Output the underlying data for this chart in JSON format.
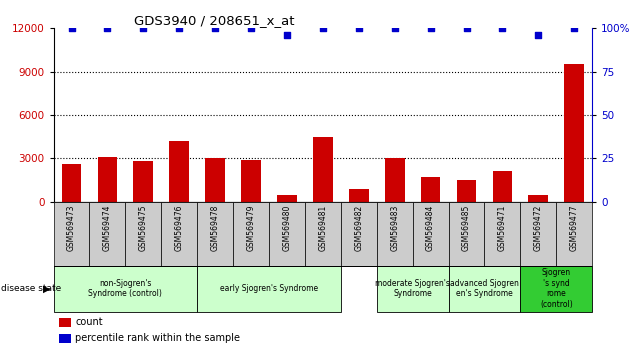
{
  "title": "GDS3940 / 208651_x_at",
  "samples": [
    "GSM569473",
    "GSM569474",
    "GSM569475",
    "GSM569476",
    "GSM569478",
    "GSM569479",
    "GSM569480",
    "GSM569481",
    "GSM569482",
    "GSM569483",
    "GSM569484",
    "GSM569485",
    "GSM569471",
    "GSM569472",
    "GSM569477"
  ],
  "counts": [
    2600,
    3100,
    2800,
    4200,
    3000,
    2900,
    500,
    4500,
    900,
    3000,
    1700,
    1500,
    2100,
    500,
    9500
  ],
  "percentiles": [
    100,
    100,
    100,
    100,
    100,
    100,
    96,
    100,
    100,
    100,
    100,
    100,
    100,
    96,
    100
  ],
  "bar_color": "#cc0000",
  "dot_color": "#0000cc",
  "group_defs": [
    {
      "start": 0,
      "end": 3,
      "label": "non-Sjogren's\nSyndrome (control)",
      "color": "#ccffcc"
    },
    {
      "start": 4,
      "end": 7,
      "label": "early Sjogren's Syndrome",
      "color": "#ccffcc"
    },
    {
      "start": 9,
      "end": 10,
      "label": "moderate Sjogren's\nSyndrome",
      "color": "#ccffcc"
    },
    {
      "start": 11,
      "end": 12,
      "label": "advanced Sjogren\nen's Syndrome",
      "color": "#ccffcc"
    },
    {
      "start": 13,
      "end": 14,
      "label": "Sjogren\n's synd\nrome\n(control)",
      "color": "#33cc33"
    }
  ],
  "ylim_left": [
    0,
    12000
  ],
  "ylim_right": [
    0,
    100
  ],
  "yticks_left": [
    0,
    3000,
    6000,
    9000,
    12000
  ],
  "yticks_right": [
    0,
    25,
    50,
    75,
    100
  ],
  "bar_color_left": "#cc0000",
  "tick_color_right": "#0000cc",
  "grid_dotted_at": [
    3000,
    6000,
    9000
  ],
  "tick_bg_color": "#cccccc",
  "legend_items": [
    {
      "color": "#cc0000",
      "label": "count"
    },
    {
      "color": "#0000cc",
      "label": "percentile rank within the sample"
    }
  ]
}
